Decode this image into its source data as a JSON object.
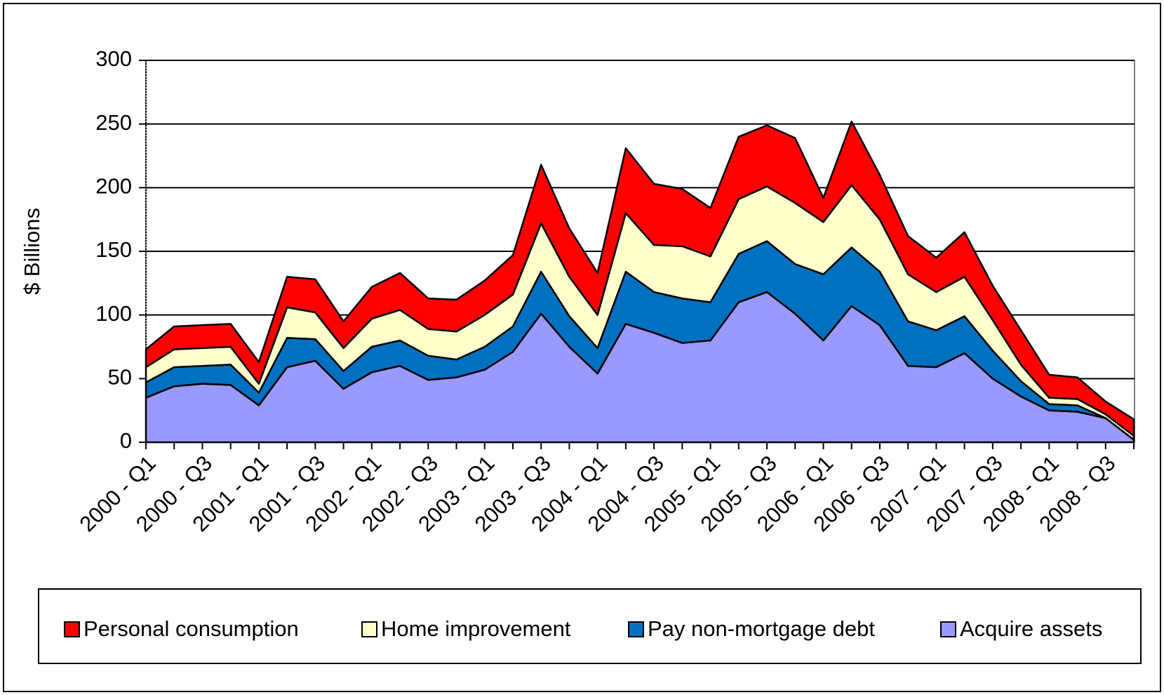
{
  "chart_data": {
    "type": "stacked_area",
    "y_label": "$ Billions",
    "categories": [
      "2000 - Q1",
      null,
      "2000 - Q3",
      null,
      "2001 - Q1",
      null,
      "2001 - Q3",
      null,
      "2002 - Q1",
      null,
      "2002 - Q3",
      null,
      "2003 - Q1",
      null,
      "2003 - Q3",
      null,
      "2004 - Q1",
      null,
      "2004 - Q3",
      null,
      "2005 - Q1",
      null,
      "2005 - Q3",
      null,
      "2006 - Q1",
      null,
      "2006 - Q3",
      null,
      "2007 - Q1",
      null,
      "2007 - Q3",
      null,
      "2008 - Q1",
      null,
      "2008 - Q3",
      null
    ],
    "series": [
      {
        "name": "Personal consumption",
        "color": "#ff0000",
        "values": [
          14,
          18,
          18,
          18,
          17,
          24,
          26,
          21,
          25,
          29,
          24,
          25,
          27,
          31,
          46,
          38,
          33,
          51,
          48,
          45,
          38,
          49,
          48,
          51,
          19,
          50,
          35,
          30,
          27,
          35,
          27,
          27,
          18,
          17,
          10,
          13
        ]
      },
      {
        "name": "Home improvement",
        "color": "#ffffcc",
        "values": [
          12,
          14,
          14,
          14,
          7,
          24,
          21,
          18,
          22,
          24,
          21,
          22,
          25,
          25,
          38,
          31,
          26,
          46,
          37,
          41,
          36,
          43,
          43,
          48,
          41,
          49,
          41,
          37,
          30,
          31,
          24,
          13,
          5,
          5,
          3,
          3
        ]
      },
      {
        "name": "Pay non-mortgage debt",
        "color": "#0070c0",
        "values": [
          12,
          15,
          14,
          16,
          10,
          23,
          17,
          14,
          20,
          20,
          19,
          14,
          18,
          20,
          33,
          24,
          20,
          41,
          32,
          35,
          30,
          38,
          40,
          39,
          52,
          46,
          42,
          35,
          29,
          29,
          22,
          12,
          5,
          5,
          0,
          0
        ]
      },
      {
        "name": "Acquire assets",
        "color": "#9999ff",
        "values": [
          35,
          44,
          46,
          45,
          29,
          59,
          64,
          42,
          55,
          60,
          49,
          51,
          57,
          71,
          101,
          75,
          54,
          93,
          86,
          78,
          80,
          110,
          118,
          101,
          80,
          107,
          92,
          60,
          59,
          70,
          50,
          36,
          25,
          24,
          19,
          2
        ]
      }
    ],
    "ylim": [
      0,
      300
    ],
    "yticks": [
      0,
      50,
      100,
      150,
      200,
      250,
      300
    ],
    "grid": true,
    "legend": "bottom"
  }
}
